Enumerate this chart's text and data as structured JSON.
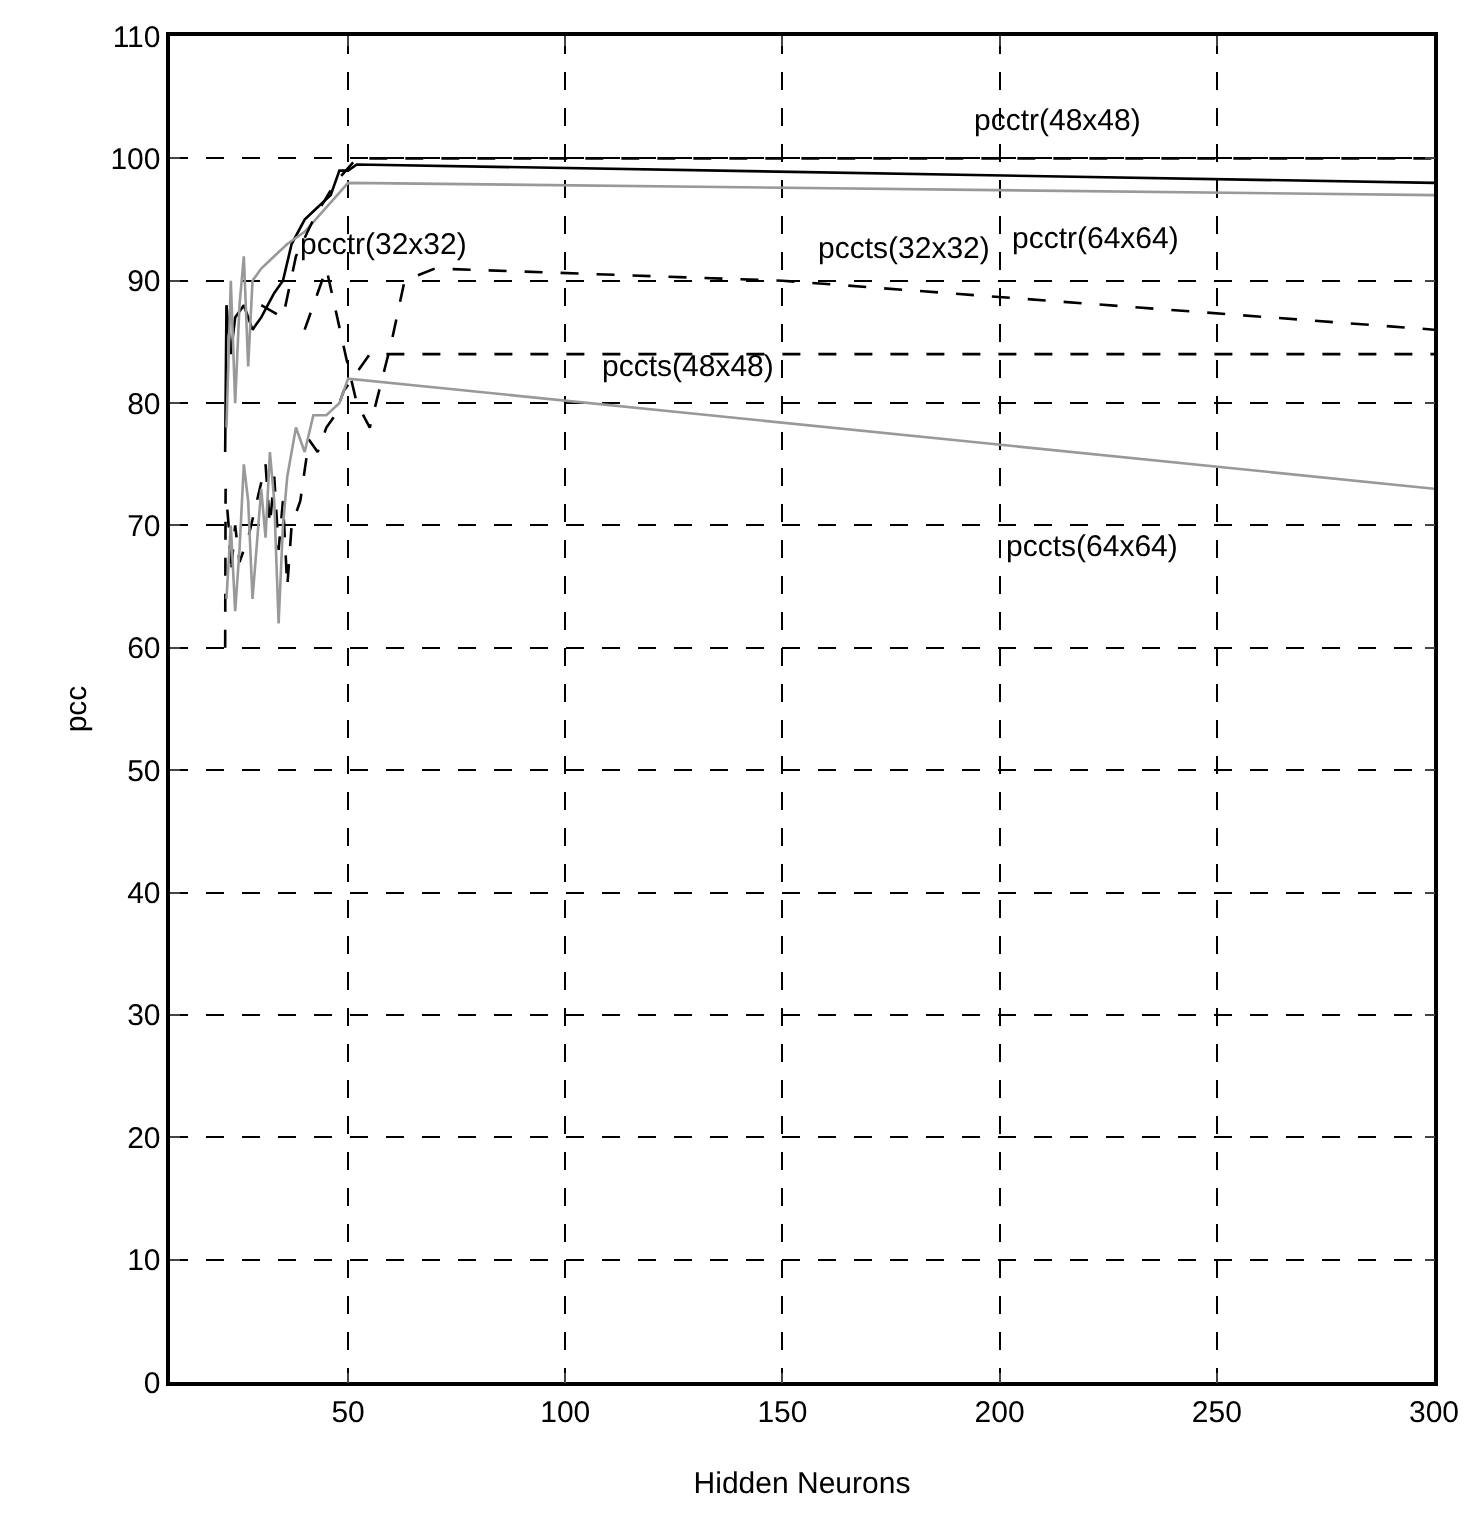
{
  "chart_data": {
    "type": "line",
    "xlabel": "Hidden Neurons",
    "ylabel": "pcc",
    "xlim": [
      9,
      300
    ],
    "xticks": [
      50,
      100,
      150,
      200,
      250,
      300
    ],
    "ylim": [
      0,
      110
    ],
    "yticks": [
      0,
      10,
      20,
      30,
      40,
      50,
      60,
      70,
      80,
      90,
      100,
      110
    ],
    "grid": true,
    "marker": "none",
    "series": [
      {
        "color": "#000000",
        "line_style": "dashed",
        "x": [
          21.7,
          21.8,
          22.5,
          23,
          24,
          25,
          27,
          29,
          31,
          32,
          33,
          34,
          35,
          36,
          37,
          39,
          41,
          43,
          45,
          47,
          49,
          51,
          55,
          300
        ],
        "values": [
          60,
          73,
          70,
          66,
          70,
          67,
          69,
          72,
          75,
          70,
          74,
          68,
          72,
          65,
          70,
          72,
          77,
          76,
          78,
          79,
          81,
          82,
          84,
          84
        ]
      },
      {
        "color": "#999999",
        "line_style": "solid",
        "x": [
          22,
          23,
          24,
          25,
          26,
          27,
          28,
          30,
          31,
          32,
          33,
          34,
          35,
          36,
          38,
          40,
          42,
          45,
          48,
          50,
          300
        ],
        "values": [
          64,
          70,
          63,
          68,
          75,
          72,
          64,
          73,
          69,
          76,
          72,
          62,
          70,
          74,
          78,
          76,
          79,
          79,
          80,
          82,
          73
        ]
      },
      {
        "color": "#000000",
        "line_style": "dashed",
        "x": [
          40,
          45,
          50,
          52,
          55,
          60,
          63,
          70,
          150,
          300
        ],
        "values": [
          86,
          91,
          83,
          80,
          78,
          85,
          90,
          91,
          90,
          86
        ]
      },
      {
        "color": "#000000",
        "line_style": "solid",
        "x": [
          21.7,
          22,
          23,
          24,
          26,
          28,
          30,
          33,
          35,
          37,
          40,
          43,
          46,
          48,
          50,
          52,
          300
        ],
        "values": [
          76,
          88,
          84,
          87,
          88,
          86,
          87,
          89,
          90,
          93,
          95,
          96,
          97,
          99,
          99,
          99.5,
          98
        ]
      },
      {
        "color": "#999999",
        "line_style": "solid",
        "x": [
          22,
          23,
          24,
          25,
          26,
          27,
          28,
          30,
          33,
          36,
          40,
          45,
          50,
          300
        ],
        "values": [
          78,
          90,
          80,
          88,
          92,
          83,
          90,
          91,
          92,
          93,
          94,
          96,
          98,
          97
        ]
      },
      {
        "color": "#000000",
        "line_style": "dashed",
        "x": [
          30,
          35,
          38,
          42,
          47,
          52,
          300
        ],
        "values": [
          88,
          87,
          92,
          95,
          98,
          100,
          100
        ]
      }
    ],
    "annotations": [
      "pcctr(32x32)",
      "pcctr(48x48)",
      "pcctr(64x64)",
      "pccts(32x32)",
      "pccts(48x48)",
      "pccts(64x64)"
    ]
  }
}
